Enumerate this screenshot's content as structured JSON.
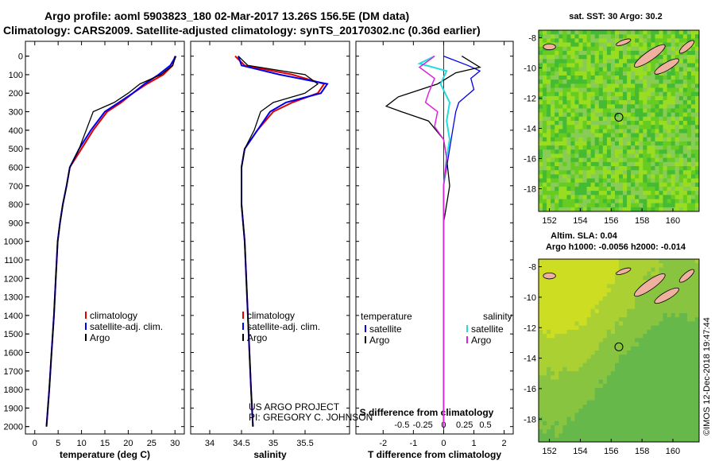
{
  "header": {
    "line1": "Argo profile: aoml 5903823_180 02-Mar-2017 13.26S 156.5E (DM data)",
    "line2": "Climatology: CARS2009. Satellite-adjusted climatology: synTS_20170302.nc (0.36d earlier)"
  },
  "credits": {
    "project": "US ARGO PROJECT",
    "pi": "PI: GREGORY C. JOHNSON",
    "imos": "©IMOS 12-Dec-2018 19:47:44"
  },
  "colors": {
    "climatology": "#e00000",
    "satellite": "#0000ee",
    "argo": "#000000",
    "sal_satellite": "#22dddd",
    "sal_argo": "#dd22dd",
    "map_green": "#44bb33",
    "map_yellow": "#dddd22",
    "land": "#f0b0a0"
  },
  "depth_axis": {
    "ticks": [
      0,
      100,
      200,
      300,
      400,
      500,
      600,
      700,
      800,
      900,
      1000,
      1100,
      1200,
      1300,
      1400,
      1500,
      1600,
      1700,
      1800,
      1900,
      2000
    ],
    "range": [
      -80,
      2040
    ]
  },
  "legend_profiles": {
    "climatology": "climatology",
    "satellite": "satellite-adj. clim.",
    "argo": "Argo"
  },
  "legend_diff": {
    "temperature_header": "temperature",
    "salinity_header": "salinity",
    "satellite": "satellite",
    "argo": "Argo"
  },
  "chart_data": [
    {
      "type": "line",
      "id": "temperature",
      "xlabel": "temperature (deg C)",
      "ylabel": "",
      "xticks": [
        0,
        5,
        10,
        15,
        20,
        25,
        30
      ],
      "xlim": [
        -2,
        32
      ],
      "series": [
        {
          "name": "climatology",
          "points": [
            [
              30.0,
              0
            ],
            [
              29.5,
              50
            ],
            [
              27.5,
              100
            ],
            [
              24.0,
              150
            ],
            [
              21.0,
              200
            ],
            [
              18.5,
              250
            ],
            [
              15.5,
              300
            ],
            [
              12.5,
              400
            ],
            [
              10.0,
              500
            ],
            [
              7.5,
              600
            ],
            [
              6.8,
              700
            ],
            [
              6.0,
              800
            ],
            [
              5.4,
              900
            ],
            [
              4.9,
              1000
            ],
            [
              4.5,
              1200
            ],
            [
              4.1,
              1400
            ],
            [
              3.6,
              1600
            ],
            [
              3.1,
              1800
            ],
            [
              2.5,
              2000
            ]
          ]
        },
        {
          "name": "satellite-adj. clim.",
          "points": [
            [
              30.2,
              0
            ],
            [
              29.0,
              50
            ],
            [
              26.5,
              100
            ],
            [
              23.5,
              150
            ],
            [
              21.0,
              200
            ],
            [
              18.0,
              250
            ],
            [
              15.0,
              300
            ],
            [
              12.0,
              400
            ],
            [
              9.5,
              500
            ],
            [
              7.5,
              600
            ],
            [
              6.8,
              700
            ],
            [
              6.0,
              800
            ],
            [
              5.4,
              900
            ],
            [
              4.9,
              1000
            ],
            [
              4.5,
              1200
            ],
            [
              4.1,
              1400
            ],
            [
              3.6,
              1600
            ],
            [
              3.1,
              1800
            ],
            [
              2.5,
              2000
            ]
          ]
        },
        {
          "name": "Argo",
          "points": [
            [
              30.2,
              0
            ],
            [
              29.5,
              50
            ],
            [
              27.0,
              100
            ],
            [
              22.5,
              150
            ],
            [
              20.0,
              200
            ],
            [
              17.0,
              250
            ],
            [
              12.5,
              300
            ],
            [
              11.0,
              400
            ],
            [
              9.5,
              500
            ],
            [
              7.5,
              600
            ],
            [
              6.8,
              700
            ],
            [
              6.0,
              800
            ],
            [
              5.4,
              900
            ],
            [
              4.9,
              1000
            ],
            [
              4.5,
              1200
            ],
            [
              4.1,
              1400
            ],
            [
              3.6,
              1600
            ],
            [
              3.1,
              1800
            ],
            [
              2.5,
              2000
            ]
          ]
        }
      ]
    },
    {
      "type": "line",
      "id": "salinity",
      "xlabel": "salinity",
      "ylabel": "",
      "xticks": [
        34,
        34.5,
        35,
        35.5
      ],
      "xlim": [
        33.7,
        36.2
      ],
      "series": [
        {
          "name": "climatology",
          "points": [
            [
              34.4,
              0
            ],
            [
              34.55,
              50
            ],
            [
              35.3,
              100
            ],
            [
              35.8,
              150
            ],
            [
              35.7,
              200
            ],
            [
              35.3,
              250
            ],
            [
              35.0,
              300
            ],
            [
              34.75,
              400
            ],
            [
              34.55,
              500
            ],
            [
              34.5,
              600
            ],
            [
              34.5,
              800
            ],
            [
              34.55,
              1000
            ],
            [
              34.6,
              1400
            ],
            [
              34.65,
              1800
            ],
            [
              34.68,
              2000
            ]
          ]
        },
        {
          "name": "satellite-adj. clim.",
          "points": [
            [
              34.45,
              0
            ],
            [
              34.5,
              50
            ],
            [
              35.1,
              100
            ],
            [
              35.85,
              150
            ],
            [
              35.75,
              200
            ],
            [
              35.2,
              250
            ],
            [
              34.95,
              300
            ],
            [
              34.75,
              400
            ],
            [
              34.55,
              500
            ],
            [
              34.5,
              600
            ],
            [
              34.5,
              800
            ],
            [
              34.55,
              1000
            ],
            [
              34.6,
              1400
            ],
            [
              34.65,
              1800
            ],
            [
              34.68,
              2000
            ]
          ]
        },
        {
          "name": "Argo",
          "points": [
            [
              34.45,
              0
            ],
            [
              34.6,
              50
            ],
            [
              35.5,
              100
            ],
            [
              35.7,
              150
            ],
            [
              35.5,
              200
            ],
            [
              35.0,
              250
            ],
            [
              34.8,
              300
            ],
            [
              34.7,
              400
            ],
            [
              34.55,
              500
            ],
            [
              34.5,
              600
            ],
            [
              34.5,
              800
            ],
            [
              34.55,
              1000
            ],
            [
              34.6,
              1400
            ],
            [
              34.65,
              1800
            ],
            [
              34.68,
              2000
            ]
          ]
        }
      ]
    },
    {
      "type": "line",
      "id": "difference",
      "xlabel": "T difference from climatology",
      "xlabel_top": "S difference from climatology",
      "xticks": [
        -2,
        -1,
        0,
        1,
        2
      ],
      "xticks_top": [
        "-0.5",
        "-0.25",
        "0",
        "0.25",
        "0.5"
      ],
      "xlim": [
        -2.9,
        2.3
      ],
      "series": [
        {
          "name": "temperature satellite",
          "points": [
            [
              0,
              0
            ],
            [
              0.8,
              50
            ],
            [
              1.2,
              80
            ],
            [
              0.9,
              120
            ],
            [
              1.0,
              180
            ],
            [
              0.5,
              250
            ],
            [
              0.4,
              300
            ],
            [
              0.3,
              400
            ],
            [
              0.2,
              500
            ],
            [
              0.1,
              600
            ],
            [
              0,
              700
            ],
            [
              0,
              2000
            ]
          ]
        },
        {
          "name": "temperature Argo",
          "points": [
            [
              0.6,
              0
            ],
            [
              1.2,
              60
            ],
            [
              0.4,
              90
            ],
            [
              -0.2,
              150
            ],
            [
              -1.5,
              220
            ],
            [
              -1.9,
              270
            ],
            [
              -1.4,
              300
            ],
            [
              -0.5,
              350
            ],
            [
              0,
              450
            ],
            [
              0.1,
              550
            ],
            [
              0.2,
              700
            ],
            [
              0,
              900
            ],
            [
              0,
              2000
            ]
          ]
        },
        {
          "name": "salinity satellite",
          "points": [
            [
              -0.3,
              0
            ],
            [
              -0.8,
              40
            ],
            [
              0.1,
              80
            ],
            [
              -0.1,
              150
            ],
            [
              0.2,
              250
            ],
            [
              0.1,
              350
            ],
            [
              0.2,
              450
            ],
            [
              0.1,
              550
            ],
            [
              0,
              700
            ],
            [
              0,
              2000
            ]
          ]
        },
        {
          "name": "salinity Argo",
          "points": [
            [
              -0.3,
              0
            ],
            [
              -0.8,
              60
            ],
            [
              -0.3,
              120
            ],
            [
              -0.5,
              200
            ],
            [
              -0.6,
              250
            ],
            [
              -0.2,
              300
            ],
            [
              -0.3,
              380
            ],
            [
              0,
              450
            ],
            [
              0.1,
              550
            ],
            [
              0,
              700
            ],
            [
              0,
              2000
            ]
          ]
        }
      ]
    },
    {
      "type": "heatmap",
      "id": "sst-map",
      "title": "sat. SST: 30 Argo: 30.2",
      "xticks": [
        152,
        154,
        156,
        158,
        160
      ],
      "yticks": [
        -8,
        -10,
        -12,
        -14,
        -16,
        -18
      ],
      "xlim": [
        151.3,
        161.7
      ],
      "ylim": [
        -19.5,
        -7.5
      ],
      "marker": [
        156.5,
        -13.26
      ]
    },
    {
      "type": "heatmap",
      "id": "sla-map",
      "title": "Altim. SLA: 0.04",
      "subtitle": "Argo h1000: -0.0056 h2000: -0.014",
      "xticks": [
        152,
        154,
        156,
        158,
        160
      ],
      "yticks": [
        -8,
        -10,
        -12,
        -14,
        -16,
        -18
      ],
      "xlim": [
        151.3,
        161.7
      ],
      "ylim": [
        -19.5,
        -7.5
      ],
      "marker": [
        156.5,
        -13.26
      ]
    }
  ]
}
